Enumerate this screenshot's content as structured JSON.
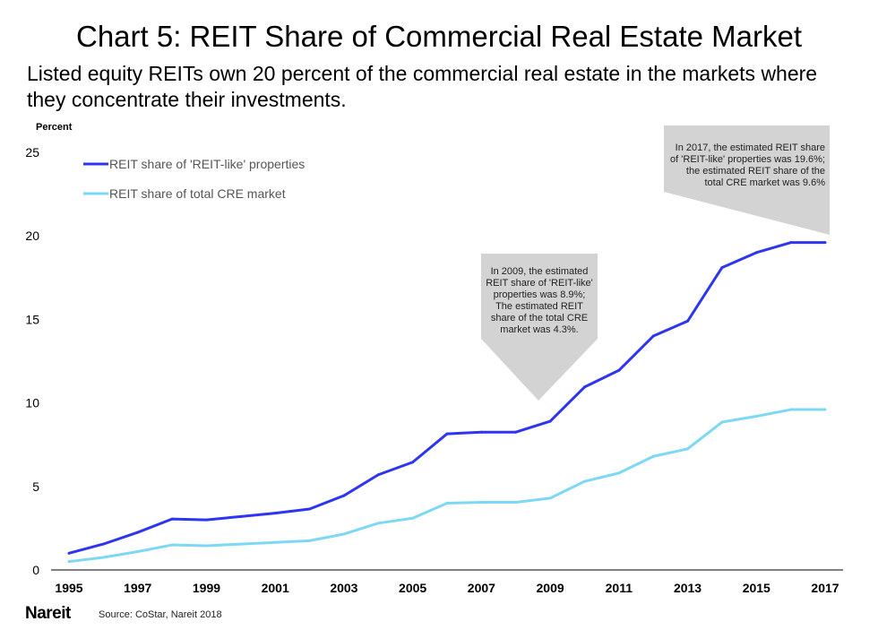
{
  "title": "Chart 5: REIT Share of Commercial Real Estate Market",
  "subtitle": "Listed equity REITs own 20 percent of the commercial real estate in the markets where they concentrate their investments.",
  "source": "Source: CoStar, Nareit 2018",
  "logo": "Nareit",
  "annotations": [
    {
      "text": "In 2009, the estimated REIT share of 'REIT-like' properties was 8.9%; The estimated REIT share of the total CRE market was 4.3%.",
      "x": 2009
    },
    {
      "text": "In 2017, the estimated REIT share of 'REIT-like' properties was 19.6%; the estimated REIT share of the total CRE market was 9.6%",
      "x": 2017
    }
  ],
  "chart_data": {
    "type": "line",
    "title": "Chart 5: REIT Share of Commercial Real Estate Market",
    "ylabel": "Percent",
    "xlabel": "",
    "ylim": [
      0,
      25
    ],
    "yticks": [
      0,
      5,
      10,
      15,
      20,
      25
    ],
    "xtick_labels": [
      "1995",
      "1997",
      "1999",
      "2001",
      "2003",
      "2005",
      "2007",
      "2009",
      "2011",
      "2013",
      "2015",
      "2017"
    ],
    "grid": false,
    "legend_placement": "top-left",
    "x": [
      1995,
      1996,
      1997,
      1998,
      1999,
      2000,
      2001,
      2002,
      2003,
      2004,
      2005,
      2006,
      2007,
      2008,
      2009,
      2010,
      2011,
      2012,
      2013,
      2014,
      2015,
      2016,
      2017
    ],
    "series": [
      {
        "name": "REIT share of 'REIT-like' properties",
        "color": "#2e35f0",
        "values": [
          1.0,
          1.55,
          2.25,
          3.05,
          3.0,
          3.2,
          3.4,
          3.65,
          4.45,
          5.7,
          6.45,
          8.15,
          8.25,
          8.25,
          8.9,
          10.95,
          11.95,
          14.0,
          14.9,
          18.1,
          19.0,
          19.6,
          19.6
        ]
      },
      {
        "name": "REIT share of total CRE market",
        "color": "#7dd8f5",
        "values": [
          0.5,
          0.75,
          1.1,
          1.5,
          1.45,
          1.55,
          1.65,
          1.75,
          2.15,
          2.8,
          3.1,
          4.0,
          4.05,
          4.05,
          4.3,
          5.3,
          5.8,
          6.8,
          7.25,
          8.85,
          9.2,
          9.6,
          9.6
        ]
      }
    ]
  }
}
